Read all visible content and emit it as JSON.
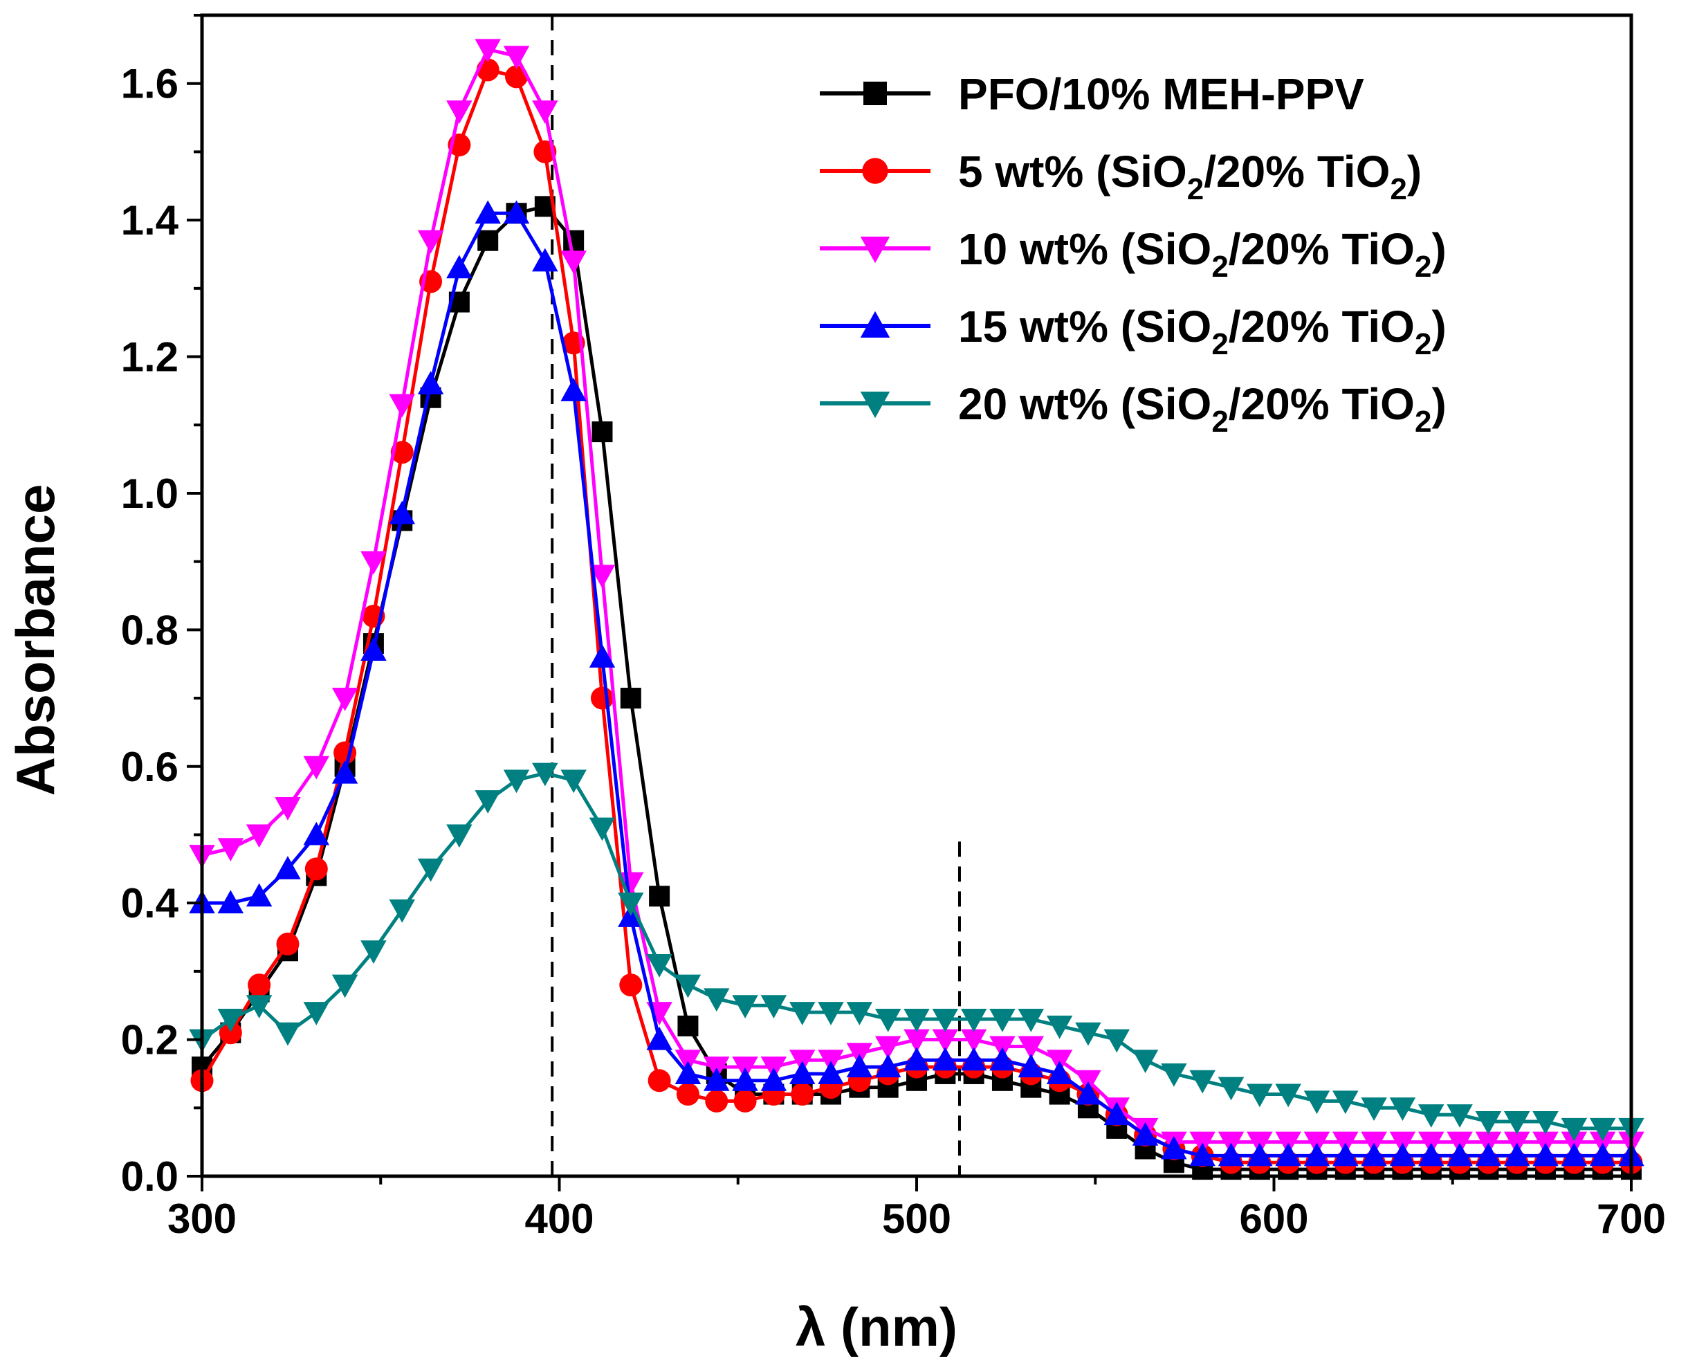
{
  "chart_data": {
    "type": "line",
    "title": "",
    "xlabel": "λ (nm)",
    "ylabel": "Absorbance",
    "xlim": [
      300,
      700
    ],
    "ylim": [
      0.0,
      1.7
    ],
    "xticks": [
      300,
      400,
      500,
      600,
      700
    ],
    "xtick_labels": [
      "300",
      "400",
      "500",
      "600",
      "700"
    ],
    "yticks": [
      0.0,
      0.2,
      0.4,
      0.6,
      0.8,
      1.0,
      1.2,
      1.4,
      1.6
    ],
    "ytick_labels": [
      "0.0",
      "0.2",
      "0.4",
      "0.6",
      "0.8",
      "1.0",
      "1.2",
      "1.4",
      "1.6"
    ],
    "grid": false,
    "legend_position": "top-right",
    "reference_lines": [
      {
        "x": 398,
        "y_from": 0.0,
        "y_to": 1.7,
        "style": "dashed"
      },
      {
        "x": 512,
        "y_from": 0.0,
        "y_to": 0.49,
        "style": "dashed"
      }
    ],
    "series": [
      {
        "name": "PFO/10% MEH-PPV",
        "legend_parts": [
          {
            "t": "PFO/10% MEH-PPV",
            "sub": false
          }
        ],
        "color": "#000000",
        "marker": "square",
        "x": [
          300,
          308,
          316,
          324,
          332,
          340,
          348,
          356,
          364,
          372,
          380,
          388,
          396,
          404,
          412,
          420,
          428,
          436,
          444,
          452,
          460,
          468,
          476,
          484,
          492,
          500,
          508,
          516,
          524,
          532,
          540,
          548,
          556,
          564,
          572,
          580,
          588,
          596,
          604,
          612,
          620,
          628,
          636,
          644,
          652,
          660,
          668,
          676,
          684,
          692,
          700
        ],
        "y": [
          0.16,
          0.21,
          0.27,
          0.33,
          0.44,
          0.6,
          0.78,
          0.96,
          1.14,
          1.28,
          1.37,
          1.41,
          1.42,
          1.37,
          1.09,
          0.7,
          0.41,
          0.22,
          0.15,
          0.12,
          0.12,
          0.12,
          0.12,
          0.13,
          0.13,
          0.14,
          0.15,
          0.15,
          0.14,
          0.13,
          0.12,
          0.1,
          0.07,
          0.04,
          0.02,
          0.01,
          0.01,
          0.01,
          0.01,
          0.01,
          0.01,
          0.01,
          0.01,
          0.01,
          0.01,
          0.01,
          0.01,
          0.01,
          0.01,
          0.01,
          0.01
        ]
      },
      {
        "name": "5 wt% (SiO2/20% TiO2)",
        "legend_parts": [
          {
            "t": "5 wt% (SiO",
            "sub": false
          },
          {
            "t": "2",
            "sub": true
          },
          {
            "t": "/20% TiO",
            "sub": false
          },
          {
            "t": "2",
            "sub": true
          },
          {
            "t": ")",
            "sub": false
          }
        ],
        "color": "#ff0000",
        "marker": "circle",
        "x": [
          300,
          308,
          316,
          324,
          332,
          340,
          348,
          356,
          364,
          372,
          380,
          388,
          396,
          404,
          412,
          420,
          428,
          436,
          444,
          452,
          460,
          468,
          476,
          484,
          492,
          500,
          508,
          516,
          524,
          532,
          540,
          548,
          556,
          564,
          572,
          580,
          588,
          596,
          604,
          612,
          620,
          628,
          636,
          644,
          652,
          660,
          668,
          676,
          684,
          692,
          700
        ],
        "y": [
          0.14,
          0.21,
          0.28,
          0.34,
          0.45,
          0.62,
          0.82,
          1.06,
          1.31,
          1.51,
          1.62,
          1.61,
          1.5,
          1.22,
          0.7,
          0.28,
          0.14,
          0.12,
          0.11,
          0.11,
          0.12,
          0.12,
          0.13,
          0.14,
          0.15,
          0.16,
          0.16,
          0.16,
          0.16,
          0.15,
          0.14,
          0.12,
          0.09,
          0.06,
          0.04,
          0.03,
          0.02,
          0.02,
          0.02,
          0.02,
          0.02,
          0.02,
          0.02,
          0.02,
          0.02,
          0.02,
          0.02,
          0.02,
          0.02,
          0.02,
          0.02
        ]
      },
      {
        "name": "10 wt% (SiO2/20% TiO2)",
        "legend_parts": [
          {
            "t": "10 wt% (SiO",
            "sub": false
          },
          {
            "t": "2",
            "sub": true
          },
          {
            "t": "/20% TiO",
            "sub": false
          },
          {
            "t": "2",
            "sub": true
          },
          {
            "t": ")",
            "sub": false
          }
        ],
        "color": "#ff00ff",
        "marker": "triangle-down",
        "x": [
          300,
          308,
          316,
          324,
          332,
          340,
          348,
          356,
          364,
          372,
          380,
          388,
          396,
          404,
          412,
          420,
          428,
          436,
          444,
          452,
          460,
          468,
          476,
          484,
          492,
          500,
          508,
          516,
          524,
          532,
          540,
          548,
          556,
          564,
          572,
          580,
          588,
          596,
          604,
          612,
          620,
          628,
          636,
          644,
          652,
          660,
          668,
          676,
          684,
          692,
          700
        ],
        "y": [
          0.47,
          0.48,
          0.5,
          0.54,
          0.6,
          0.7,
          0.9,
          1.13,
          1.37,
          1.56,
          1.65,
          1.64,
          1.56,
          1.34,
          0.88,
          0.43,
          0.24,
          0.17,
          0.16,
          0.16,
          0.16,
          0.17,
          0.17,
          0.18,
          0.19,
          0.2,
          0.2,
          0.2,
          0.19,
          0.19,
          0.17,
          0.14,
          0.1,
          0.07,
          0.05,
          0.05,
          0.05,
          0.05,
          0.05,
          0.05,
          0.05,
          0.05,
          0.05,
          0.05,
          0.05,
          0.05,
          0.05,
          0.05,
          0.05,
          0.05,
          0.05
        ]
      },
      {
        "name": "15 wt% (SiO2/20% TiO2)",
        "legend_parts": [
          {
            "t": "15 wt% (SiO",
            "sub": false
          },
          {
            "t": "2",
            "sub": true
          },
          {
            "t": "/20% TiO",
            "sub": false
          },
          {
            "t": "2",
            "sub": true
          },
          {
            "t": ")",
            "sub": false
          }
        ],
        "color": "#0000ff",
        "marker": "triangle-up",
        "x": [
          300,
          308,
          316,
          324,
          332,
          340,
          348,
          356,
          364,
          372,
          380,
          388,
          396,
          404,
          412,
          420,
          428,
          436,
          444,
          452,
          460,
          468,
          476,
          484,
          492,
          500,
          508,
          516,
          524,
          532,
          540,
          548,
          556,
          564,
          572,
          580,
          588,
          596,
          604,
          612,
          620,
          628,
          636,
          644,
          652,
          660,
          668,
          676,
          684,
          692,
          700
        ],
        "y": [
          0.4,
          0.4,
          0.41,
          0.45,
          0.5,
          0.59,
          0.77,
          0.97,
          1.16,
          1.33,
          1.41,
          1.41,
          1.34,
          1.15,
          0.76,
          0.38,
          0.2,
          0.15,
          0.14,
          0.14,
          0.14,
          0.15,
          0.15,
          0.16,
          0.16,
          0.17,
          0.17,
          0.17,
          0.17,
          0.16,
          0.15,
          0.12,
          0.09,
          0.06,
          0.04,
          0.03,
          0.03,
          0.03,
          0.03,
          0.03,
          0.03,
          0.03,
          0.03,
          0.03,
          0.03,
          0.03,
          0.03,
          0.03,
          0.03,
          0.03,
          0.03
        ]
      },
      {
        "name": "20 wt% (SiO2/20% TiO2)",
        "legend_parts": [
          {
            "t": "20 wt% (SiO",
            "sub": false
          },
          {
            "t": "2",
            "sub": true
          },
          {
            "t": "/20% TiO",
            "sub": false
          },
          {
            "t": "2",
            "sub": true
          },
          {
            "t": ")",
            "sub": false
          }
        ],
        "color": "#008080",
        "marker": "triangle-down",
        "x": [
          300,
          308,
          316,
          324,
          332,
          340,
          348,
          356,
          364,
          372,
          380,
          388,
          396,
          404,
          412,
          420,
          428,
          436,
          444,
          452,
          460,
          468,
          476,
          484,
          492,
          500,
          508,
          516,
          524,
          532,
          540,
          548,
          556,
          564,
          572,
          580,
          588,
          596,
          604,
          612,
          620,
          628,
          636,
          644,
          652,
          660,
          668,
          676,
          684,
          692,
          700
        ],
        "y": [
          0.2,
          0.23,
          0.25,
          0.21,
          0.24,
          0.28,
          0.33,
          0.39,
          0.45,
          0.5,
          0.55,
          0.58,
          0.59,
          0.58,
          0.51,
          0.4,
          0.31,
          0.28,
          0.26,
          0.25,
          0.25,
          0.24,
          0.24,
          0.24,
          0.23,
          0.23,
          0.23,
          0.23,
          0.23,
          0.23,
          0.22,
          0.21,
          0.2,
          0.17,
          0.15,
          0.14,
          0.13,
          0.12,
          0.12,
          0.11,
          0.11,
          0.1,
          0.1,
          0.09,
          0.09,
          0.08,
          0.08,
          0.08,
          0.07,
          0.07,
          0.07
        ]
      }
    ]
  }
}
